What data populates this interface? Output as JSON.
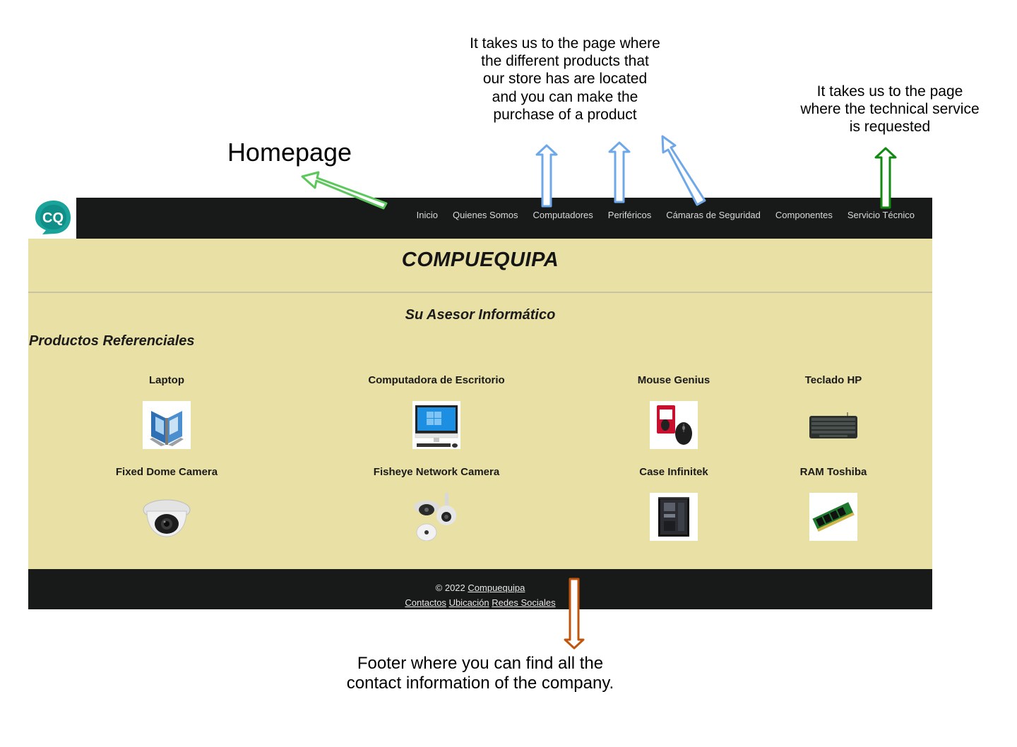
{
  "annotations": {
    "homepage": "Homepage",
    "products": "It takes us to the page where the different products that our store has are located and you can make the purchase of a product",
    "service": "It takes us to the page where the technical service is requested",
    "footer": "Footer where you can find all the contact information of the company."
  },
  "colors": {
    "nav_bg": "#181a19",
    "page_bg": "#e9e0a6",
    "logo_teal": "#1aa39a",
    "arrow_green_light": "#5cc75c",
    "arrow_blue": "#6fa8e8",
    "arrow_green_dark": "#118a11",
    "arrow_orange": "#c0560e"
  },
  "site": {
    "logo_text": "CQ",
    "nav": [
      "Inicio",
      "Quienes Somos",
      "Computadores",
      "Periféricos",
      "Cámaras de Seguridad",
      "Componentes",
      "Servicio Técnico"
    ],
    "brand": "COMPUEQUIPA",
    "tagline": "Su Asesor Informático",
    "section_title": "Productos Referenciales",
    "products": [
      {
        "name": "Laptop",
        "icon": "laptop-icon"
      },
      {
        "name": "Computadora de Escritorio",
        "icon": "desktop-computer-icon"
      },
      {
        "name": "Mouse Genius",
        "icon": "mouse-icon"
      },
      {
        "name": "Teclado HP",
        "icon": "keyboard-icon"
      },
      {
        "name": "Fixed Dome Camera",
        "icon": "dome-camera-icon"
      },
      {
        "name": "Fisheye Network Camera",
        "icon": "fisheye-camera-icon"
      },
      {
        "name": "Case Infinitek",
        "icon": "pc-case-icon"
      },
      {
        "name": "RAM Toshiba",
        "icon": "ram-module-icon"
      }
    ],
    "footer": {
      "copyright": "© 2022 ",
      "company_link": "Compuequipa",
      "links": [
        "Contactos",
        "Ubicación",
        "Redes Sociales"
      ]
    }
  }
}
